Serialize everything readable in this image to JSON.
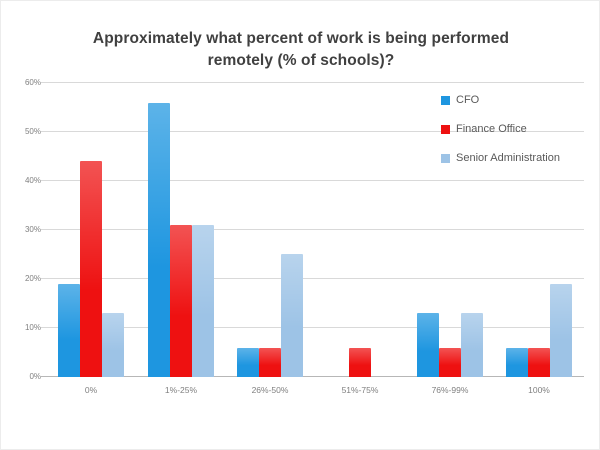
{
  "chart_data": {
    "type": "bar",
    "title": "Approximately what percent of work is being performed remotely (% of schools)?",
    "categories": [
      "0%",
      "1%-25%",
      "26%-50%",
      "51%-75%",
      "76%-99%",
      "100%"
    ],
    "series": [
      {
        "name": "CFO",
        "color": "#1e96e0",
        "values": [
          19,
          56,
          6,
          0,
          13,
          6
        ]
      },
      {
        "name": "Finance Office",
        "color": "#ee1111",
        "values": [
          44,
          31,
          6,
          6,
          6,
          6
        ]
      },
      {
        "name": "Senior Administration",
        "color": "#9dc3e6",
        "values": [
          13,
          31,
          25,
          0,
          13,
          19
        ]
      }
    ],
    "xlabel": "",
    "ylabel": "",
    "ylim": [
      0,
      60
    ],
    "ytick_step": 10,
    "yticks": [
      "0%",
      "10%",
      "20%",
      "30%",
      "40%",
      "50%",
      "60%"
    ],
    "grid": true,
    "legend_position": "top-right",
    "colors": {
      "title_text": "#404040",
      "axis_text": "#7f7f7f",
      "legend_text": "#595959",
      "gridline": "#d9d9d9",
      "axis_line": "#b7b7b7",
      "background": "#ffffff"
    }
  }
}
